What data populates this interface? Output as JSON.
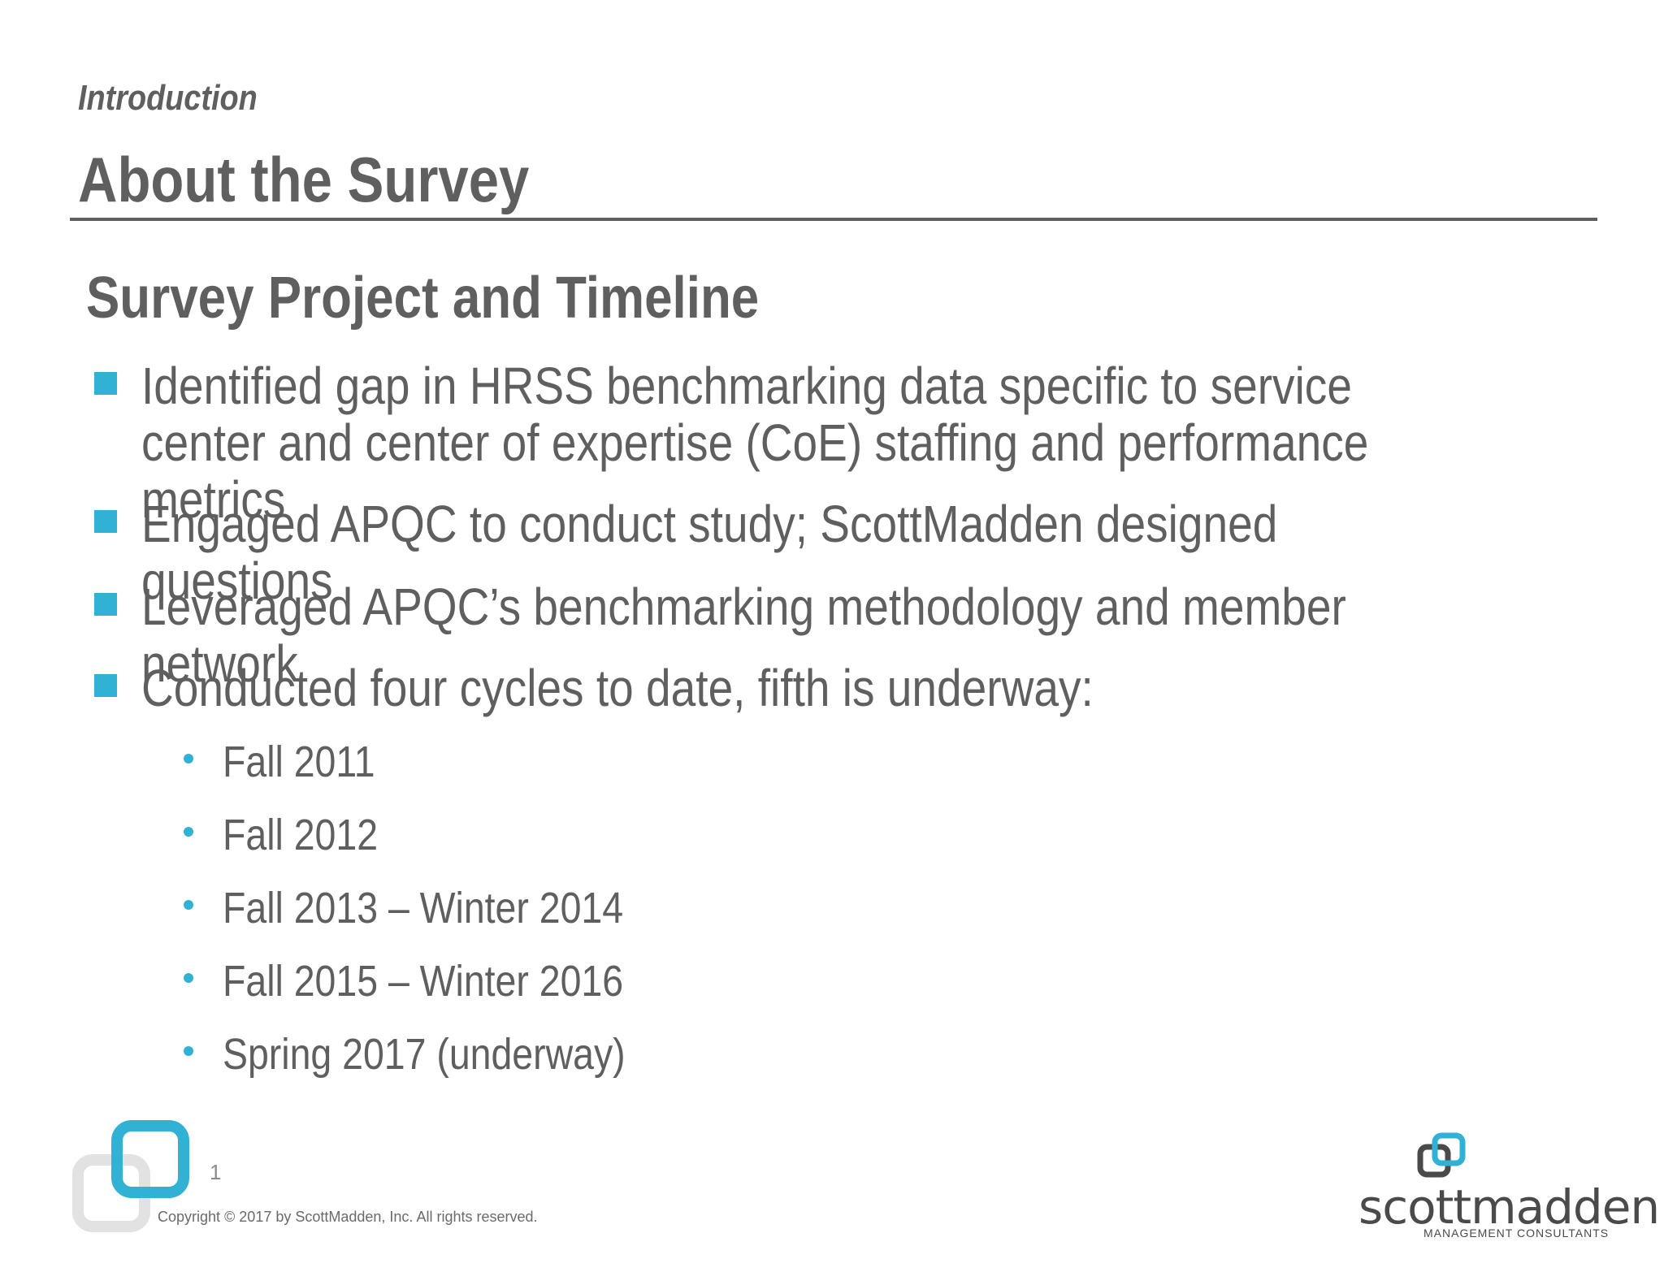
{
  "header": {
    "section_label": "Introduction",
    "title": "About the Survey"
  },
  "content": {
    "subtitle": "Survey Project and Timeline",
    "bullets": [
      "Identified gap in HRSS benchmarking data specific to service center and center of expertise (CoE) staffing and performance metrics",
      "Engaged APQC to conduct study; ScottMadden designed questions",
      "Leveraged APQC’s benchmarking methodology and member network",
      "Conducted four cycles to date, fifth is underway:"
    ],
    "cycles": [
      "Fall 2011",
      "Fall 2012",
      "Fall 2013 – Winter 2014",
      "Fall 2015 – Winter 2016",
      "Spring 2017 (underway)"
    ]
  },
  "footer": {
    "page_number": "1",
    "copyright": "Copyright © 2017 by ScottMadden, Inc. All rights reserved.",
    "brand_name": "scottmadden",
    "brand_tagline": "MANAGEMENT CONSULTANTS"
  },
  "colors": {
    "accent": "#31b1d4",
    "text": "#5f5f5f",
    "corner_gray": "#e2e2e2"
  }
}
